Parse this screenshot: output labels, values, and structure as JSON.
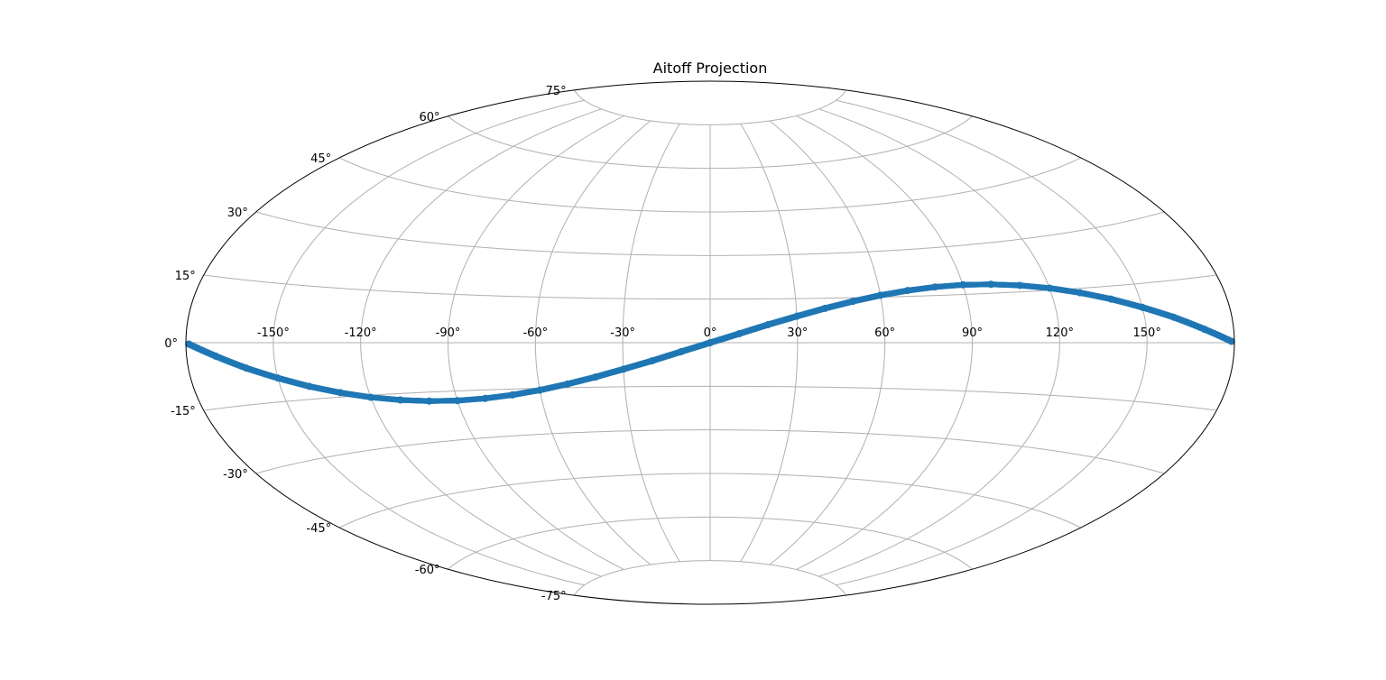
{
  "chart_data": {
    "type": "scatter",
    "projection": "aitoff",
    "title": "Aitoff Projection",
    "grid": true,
    "xlim": [
      -180,
      180
    ],
    "ylim": [
      -90,
      90
    ],
    "x_ticks": [
      -150,
      -120,
      -90,
      -60,
      -30,
      0,
      30,
      60,
      90,
      120,
      150
    ],
    "y_ticks": [
      -75,
      -60,
      -45,
      -30,
      -15,
      0,
      15,
      30,
      45,
      60,
      75
    ],
    "x_tick_labels": [
      "-150°",
      "-120°",
      "-90°",
      "-60°",
      "-30°",
      "0°",
      "30°",
      "60°",
      "90°",
      "120°",
      "150°"
    ],
    "y_tick_labels": [
      "-75°",
      "-60°",
      "-45°",
      "-30°",
      "-15°",
      "0°",
      "15°",
      "30°",
      "45°",
      "60°",
      "75°"
    ],
    "series": [
      {
        "color": "#1f77b4",
        "x": [
          -179,
          -170,
          -160,
          -150,
          -140,
          -130,
          -120,
          -110,
          -100,
          -90,
          -80,
          -70,
          -60,
          -50,
          -40,
          -30,
          -20,
          -10,
          0,
          10,
          20,
          30,
          40,
          50,
          60,
          70,
          80,
          90,
          100,
          110,
          120,
          130,
          140,
          150,
          160,
          170,
          179
        ],
        "y": [
          -0.3,
          -3.1,
          -6.2,
          -9.0,
          -11.6,
          -13.8,
          -15.6,
          -16.9,
          -17.7,
          -18.0,
          -17.7,
          -16.9,
          -15.6,
          -13.8,
          -11.6,
          -9.0,
          -6.2,
          -3.1,
          0.0,
          3.1,
          6.2,
          9.0,
          11.6,
          13.8,
          15.6,
          16.9,
          17.7,
          18.0,
          17.7,
          16.9,
          15.6,
          13.8,
          11.6,
          9.0,
          6.2,
          3.1,
          0.3
        ]
      }
    ],
    "colors": {
      "grid": "#b0b0b0",
      "frame": "#000000",
      "marker": "#1f77b4"
    }
  }
}
